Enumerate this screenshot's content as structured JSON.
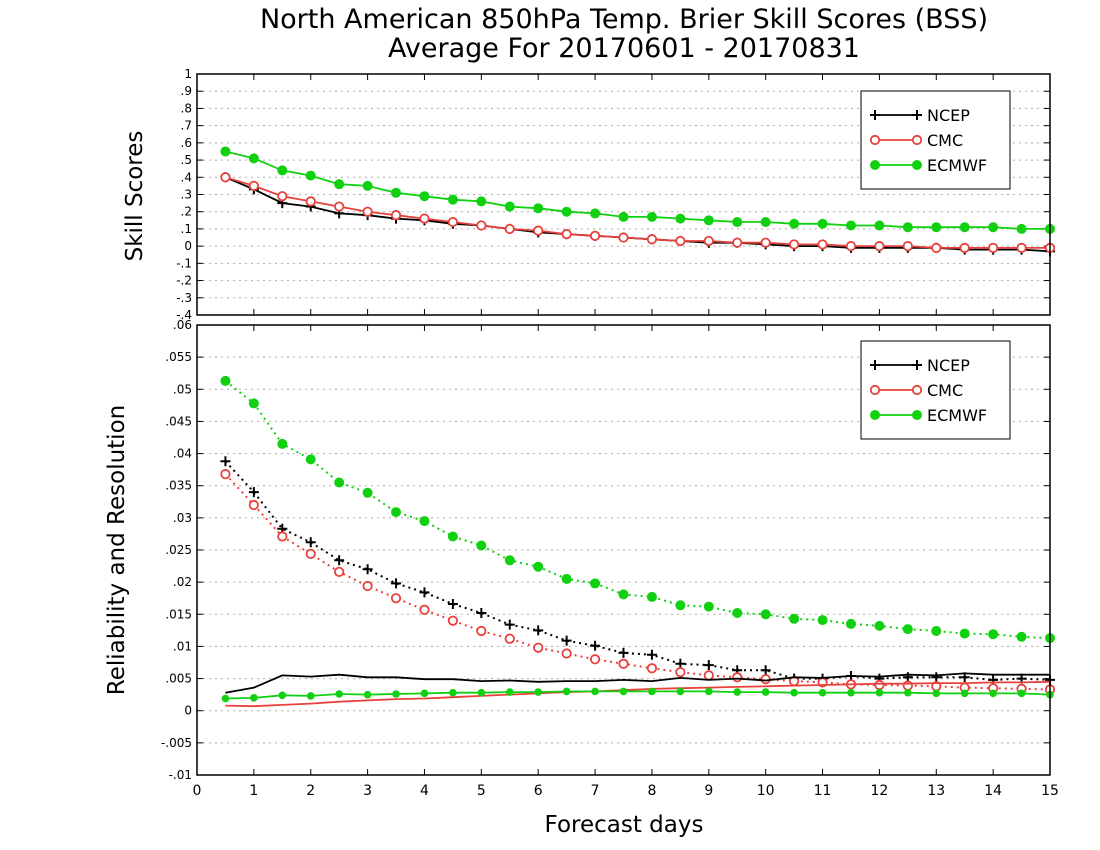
{
  "title": {
    "line1": "North American 850hPa Temp. Brier Skill Scores (BSS)",
    "line2": "Average For 20170601 - 20170831"
  },
  "xlabel": "Forecast days",
  "colors": {
    "NCEP": "#000000",
    "CMC": "#e8413c",
    "ECMWF": "#10d010"
  },
  "chart_data": [
    {
      "type": "line",
      "panel": "top",
      "ylabel": "Skill Scores",
      "xlim": [
        0,
        15
      ],
      "ylim": [
        -0.4,
        1
      ],
      "yticks": [
        -0.4,
        -0.3,
        -0.2,
        -0.1,
        0,
        0.1,
        0.2,
        0.3,
        0.4,
        0.5,
        0.6,
        0.7,
        0.8,
        0.9,
        1
      ],
      "xticks": [
        0,
        1,
        2,
        3,
        4,
        5,
        6,
        7,
        8,
        9,
        10,
        11,
        12,
        13,
        14,
        15
      ],
      "grid": true,
      "legend_position": "top-right",
      "x": [
        0.5,
        1,
        1.5,
        2,
        2.5,
        3,
        3.5,
        4,
        4.5,
        5,
        5.5,
        6,
        6.5,
        7,
        7.5,
        8,
        8.5,
        9,
        9.5,
        10,
        10.5,
        11,
        11.5,
        12,
        12.5,
        13,
        13.5,
        14,
        14.5,
        15
      ],
      "series": [
        {
          "name": "NCEP",
          "marker": "plus",
          "line": "solid",
          "values": [
            0.4,
            0.33,
            0.25,
            0.23,
            0.19,
            0.18,
            0.16,
            0.15,
            0.13,
            0.12,
            0.1,
            0.08,
            0.07,
            0.06,
            0.05,
            0.04,
            0.03,
            0.02,
            0.02,
            0.01,
            0.0,
            0.0,
            -0.01,
            -0.01,
            -0.01,
            -0.01,
            -0.02,
            -0.02,
            -0.02,
            -0.03
          ]
        },
        {
          "name": "CMC",
          "marker": "open-circle",
          "line": "solid",
          "values": [
            0.4,
            0.35,
            0.29,
            0.26,
            0.23,
            0.2,
            0.18,
            0.16,
            0.14,
            0.12,
            0.1,
            0.09,
            0.07,
            0.06,
            0.05,
            0.04,
            0.03,
            0.03,
            0.02,
            0.02,
            0.01,
            0.01,
            0.0,
            0.0,
            0.0,
            -0.01,
            -0.01,
            -0.01,
            -0.01,
            -0.01
          ]
        },
        {
          "name": "ECMWF",
          "marker": "filled-circle",
          "line": "solid",
          "values": [
            0.55,
            0.51,
            0.44,
            0.41,
            0.36,
            0.35,
            0.31,
            0.29,
            0.27,
            0.26,
            0.23,
            0.22,
            0.2,
            0.19,
            0.17,
            0.17,
            0.16,
            0.15,
            0.14,
            0.14,
            0.13,
            0.13,
            0.12,
            0.12,
            0.11,
            0.11,
            0.11,
            0.11,
            0.1,
            0.1
          ]
        }
      ]
    },
    {
      "type": "line",
      "panel": "bottom",
      "ylabel": "Reliability and Resolution",
      "xlim": [
        0,
        15
      ],
      "ylim": [
        -0.01,
        0.06
      ],
      "yticks": [
        -0.01,
        -0.005,
        0,
        0.005,
        0.01,
        0.015,
        0.02,
        0.025,
        0.03,
        0.035,
        0.04,
        0.045,
        0.05,
        0.055,
        0.06
      ],
      "xticks": [
        0,
        1,
        2,
        3,
        4,
        5,
        6,
        7,
        8,
        9,
        10,
        11,
        12,
        13,
        14,
        15
      ],
      "grid": true,
      "legend_position": "top-right",
      "x": [
        0.5,
        1,
        1.5,
        2,
        2.5,
        3,
        3.5,
        4,
        4.5,
        5,
        5.5,
        6,
        6.5,
        7,
        7.5,
        8,
        8.5,
        9,
        9.5,
        10,
        10.5,
        11,
        11.5,
        12,
        12.5,
        13,
        13.5,
        14,
        14.5,
        15
      ],
      "series": [
        {
          "name": "NCEP",
          "marker": "plus",
          "line": "dotted",
          "role": "resolution",
          "values": [
            0.0388,
            0.034,
            0.0283,
            0.0262,
            0.0234,
            0.022,
            0.0198,
            0.0184,
            0.0166,
            0.0152,
            0.0134,
            0.0125,
            0.0109,
            0.0101,
            0.009,
            0.0087,
            0.0073,
            0.0071,
            0.0063,
            0.0063,
            0.005,
            0.005,
            0.0054,
            0.005,
            0.0052,
            0.0052,
            0.0052,
            0.0048,
            0.005,
            0.0048
          ]
        },
        {
          "name": "CMC",
          "marker": "open-circle",
          "line": "dotted",
          "role": "resolution",
          "values": [
            0.0368,
            0.032,
            0.0271,
            0.0244,
            0.0216,
            0.0194,
            0.0175,
            0.0157,
            0.014,
            0.0124,
            0.0112,
            0.0098,
            0.0089,
            0.008,
            0.0073,
            0.0066,
            0.006,
            0.0055,
            0.0052,
            0.0049,
            0.0046,
            0.0044,
            0.0041,
            0.004,
            0.0039,
            0.0038,
            0.0036,
            0.0035,
            0.0034,
            0.0033
          ]
        },
        {
          "name": "ECMWF",
          "marker": "filled-circle",
          "line": "dotted",
          "role": "resolution",
          "values": [
            0.0513,
            0.0478,
            0.0415,
            0.0391,
            0.0355,
            0.0339,
            0.0309,
            0.0295,
            0.0271,
            0.0257,
            0.0234,
            0.0224,
            0.0205,
            0.0198,
            0.0181,
            0.0177,
            0.0164,
            0.0162,
            0.0152,
            0.015,
            0.0143,
            0.0141,
            0.0135,
            0.0132,
            0.0127,
            0.0124,
            0.012,
            0.0119,
            0.0115,
            0.0113
          ]
        },
        {
          "name": "NCEP",
          "marker": "none",
          "line": "solid",
          "role": "reliability",
          "values": [
            0.0028,
            0.0036,
            0.0055,
            0.0053,
            0.0056,
            0.0052,
            0.0052,
            0.0049,
            0.0049,
            0.0046,
            0.0047,
            0.0045,
            0.0046,
            0.0046,
            0.0048,
            0.0046,
            0.0051,
            0.0048,
            0.005,
            0.0047,
            0.0052,
            0.0051,
            0.0054,
            0.0053,
            0.0056,
            0.0055,
            0.0058,
            0.0056,
            0.0056,
            0.0056
          ]
        },
        {
          "name": "CMC",
          "marker": "none",
          "line": "solid",
          "role": "reliability",
          "values": [
            0.0008,
            0.0007,
            0.0009,
            0.0011,
            0.0014,
            0.0016,
            0.0018,
            0.0019,
            0.0021,
            0.0023,
            0.0025,
            0.0027,
            0.0029,
            0.003,
            0.0032,
            0.0034,
            0.0035,
            0.0036,
            0.0037,
            0.0038,
            0.0039,
            0.004,
            0.0041,
            0.0042,
            0.0042,
            0.0043,
            0.0043,
            0.0044,
            0.0044,
            0.0045
          ]
        },
        {
          "name": "ECMWF",
          "marker": "filled-circle-small",
          "line": "solid",
          "role": "reliability",
          "values": [
            0.0019,
            0.002,
            0.0024,
            0.0023,
            0.0026,
            0.0025,
            0.0026,
            0.0027,
            0.0028,
            0.0028,
            0.0029,
            0.0029,
            0.003,
            0.003,
            0.003,
            0.003,
            0.003,
            0.003,
            0.0029,
            0.0029,
            0.0028,
            0.0028,
            0.0028,
            0.0028,
            0.0028,
            0.0027,
            0.0027,
            0.0027,
            0.0027,
            0.0025
          ]
        }
      ]
    }
  ]
}
